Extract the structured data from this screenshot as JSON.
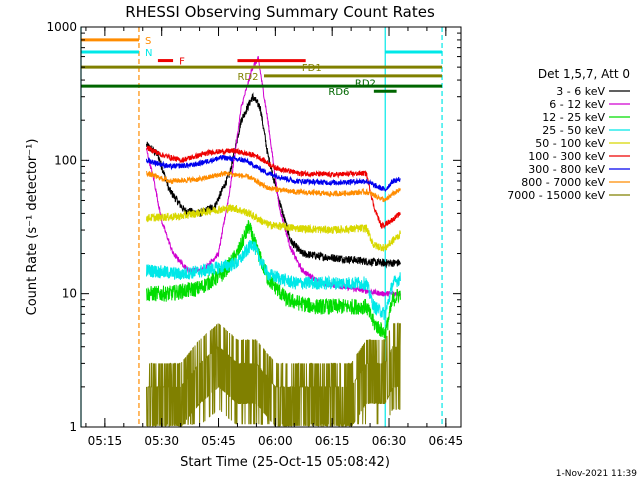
{
  "chart_data": {
    "type": "line",
    "title": "RHESSI Observing Summary Count Rates",
    "xlabel": "Start Time (25-Oct-15 05:08:42)",
    "ylabel": "Count Rate (s⁻¹ detector⁻¹)",
    "y_scale": "log",
    "ylim": [
      1,
      1000
    ],
    "xlim": [
      "05:08:42",
      "06:49:00"
    ],
    "y_tick_labels": [
      "1",
      "10",
      "100",
      "1000"
    ],
    "x_tick_labels": [
      "05:15",
      "05:30",
      "05:45",
      "06:00",
      "06:15",
      "06:30",
      "06:45"
    ],
    "x_tick_times": [
      "05:15",
      "05:30",
      "05:45",
      "06:00",
      "06:15",
      "06:30",
      "06:45"
    ],
    "legend_title": "Det 1,5,7, Att 0",
    "legend_position": "right",
    "footer_date": "1-Nov-2021 11:39",
    "series": [
      {
        "name": "3 - 6 keV",
        "color": "#000000",
        "noise": 0.03,
        "points": [
          [
            "05:26:00",
            130
          ],
          [
            "05:29:00",
            110
          ],
          [
            "05:32:00",
            60
          ],
          [
            "05:36:00",
            42
          ],
          [
            "05:40:00",
            40
          ],
          [
            "05:44:00",
            45
          ],
          [
            "05:48:00",
            80
          ],
          [
            "05:51:00",
            200
          ],
          [
            "05:54:00",
            300
          ],
          [
            "05:56:00",
            250
          ],
          [
            "05:58:00",
            110
          ],
          [
            "06:01:00",
            50
          ],
          [
            "06:04:00",
            25
          ],
          [
            "06:07:00",
            20
          ],
          [
            "06:12:00",
            19
          ],
          [
            "06:20:00",
            18
          ],
          [
            "06:28:00",
            17
          ],
          [
            "06:33:00",
            17
          ]
        ]
      },
      {
        "name": "6 - 12 keV",
        "color": "#d000d0",
        "noise": 0.02,
        "points": [
          [
            "05:26:00",
            120
          ],
          [
            "05:28:00",
            70
          ],
          [
            "05:30:00",
            35
          ],
          [
            "05:33:00",
            20
          ],
          [
            "05:37:00",
            15
          ],
          [
            "05:41:00",
            15
          ],
          [
            "05:45:00",
            20
          ],
          [
            "05:48:00",
            60
          ],
          [
            "05:51:00",
            250
          ],
          [
            "05:54:00",
            500
          ],
          [
            "05:55:30",
            580
          ],
          [
            "05:58:00",
            200
          ],
          [
            "06:01:00",
            45
          ],
          [
            "06:04:00",
            22
          ],
          [
            "06:07:00",
            15
          ],
          [
            "06:12:00",
            12
          ],
          [
            "06:20:00",
            11
          ],
          [
            "06:28:00",
            10
          ],
          [
            "06:33:00",
            10
          ]
        ]
      },
      {
        "name": "12 - 25 keV",
        "color": "#00dd00",
        "noise": 0.06,
        "points": [
          [
            "05:26:00",
            10
          ],
          [
            "05:32:00",
            10
          ],
          [
            "05:40:00",
            11
          ],
          [
            "05:46:00",
            14
          ],
          [
            "05:50:00",
            20
          ],
          [
            "05:53:00",
            32
          ],
          [
            "05:55:00",
            22
          ],
          [
            "05:58:00",
            13
          ],
          [
            "06:03:00",
            9
          ],
          [
            "06:10:00",
            8
          ],
          [
            "06:20:00",
            8
          ],
          [
            "06:24:00",
            8
          ],
          [
            "06:26:00",
            6
          ],
          [
            "06:29:00",
            5
          ],
          [
            "06:31:00",
            9
          ],
          [
            "06:33:00",
            10
          ]
        ]
      },
      {
        "name": "25 - 50 keV",
        "color": "#00e8e8",
        "noise": 0.05,
        "points": [
          [
            "05:26:00",
            15
          ],
          [
            "05:35:00",
            14
          ],
          [
            "05:42:00",
            15
          ],
          [
            "05:50:00",
            17
          ],
          [
            "05:54:00",
            24
          ],
          [
            "05:56:00",
            18
          ],
          [
            "05:58:00",
            14
          ],
          [
            "06:05:00",
            12
          ],
          [
            "06:15:00",
            12
          ],
          [
            "06:24:00",
            12
          ],
          [
            "06:26:00",
            8
          ],
          [
            "06:29:00",
            7
          ],
          [
            "06:31:00",
            12
          ],
          [
            "06:33:00",
            13
          ]
        ]
      },
      {
        "name": "50 - 100 keV",
        "color": "#d8d800",
        "noise": 0.03,
        "points": [
          [
            "05:26:00",
            37
          ],
          [
            "05:35:00",
            38
          ],
          [
            "05:43:00",
            42
          ],
          [
            "05:49:00",
            44
          ],
          [
            "05:53:00",
            40
          ],
          [
            "05:58:00",
            33
          ],
          [
            "06:05:00",
            31
          ],
          [
            "06:15:00",
            30
          ],
          [
            "06:24:00",
            31
          ],
          [
            "06:26:00",
            23
          ],
          [
            "06:29:00",
            22
          ],
          [
            "06:31:00",
            25
          ],
          [
            "06:33:00",
            28
          ]
        ]
      },
      {
        "name": "100 - 300 keV",
        "color": "#ee0000",
        "noise": 0.02,
        "points": [
          [
            "05:26:00",
            125
          ],
          [
            "05:30:00",
            110
          ],
          [
            "05:35:00",
            100
          ],
          [
            "05:43:00",
            115
          ],
          [
            "05:49:00",
            118
          ],
          [
            "05:55:00",
            108
          ],
          [
            "06:00:00",
            88
          ],
          [
            "06:06:00",
            80
          ],
          [
            "06:15:00",
            78
          ],
          [
            "06:24:00",
            80
          ],
          [
            "06:26:00",
            45
          ],
          [
            "06:28:00",
            32
          ],
          [
            "06:31:00",
            36
          ],
          [
            "06:33:00",
            40
          ]
        ]
      },
      {
        "name": "300 - 800 keV",
        "color": "#0000ee",
        "noise": 0.02,
        "points": [
          [
            "05:26:00",
            100
          ],
          [
            "05:32:00",
            90
          ],
          [
            "05:38:00",
            92
          ],
          [
            "05:46:00",
            105
          ],
          [
            "05:52:00",
            100
          ],
          [
            "05:58:00",
            80
          ],
          [
            "06:05:00",
            70
          ],
          [
            "06:15:00",
            68
          ],
          [
            "06:24:00",
            70
          ],
          [
            "06:26:00",
            65
          ],
          [
            "06:29:00",
            60
          ],
          [
            "06:31:00",
            70
          ],
          [
            "06:33:00",
            72
          ]
        ]
      },
      {
        "name": "800 - 7000 keV",
        "color": "#ff8c00",
        "noise": 0.02,
        "points": [
          [
            "05:26:00",
            80
          ],
          [
            "05:32:00",
            70
          ],
          [
            "05:40:00",
            72
          ],
          [
            "05:47:00",
            80
          ],
          [
            "05:53:00",
            75
          ],
          [
            "05:58:00",
            62
          ],
          [
            "06:05:00",
            58
          ],
          [
            "06:15:00",
            56
          ],
          [
            "06:24:00",
            58
          ],
          [
            "06:26:00",
            55
          ],
          [
            "06:29:00",
            50
          ],
          [
            "06:31:00",
            56
          ],
          [
            "06:33:00",
            60
          ]
        ]
      },
      {
        "name": "7000 - 15000 keV",
        "color": "#808000",
        "noise": 0,
        "points": [
          [
            "05:26:00",
            2
          ],
          [
            "05:30:00",
            2
          ],
          [
            "05:35:00",
            2
          ],
          [
            "05:40:00",
            3
          ],
          [
            "05:45:00",
            4
          ],
          [
            "05:50:00",
            3
          ],
          [
            "05:55:00",
            3
          ],
          [
            "06:00:00",
            2
          ],
          [
            "06:10:00",
            2
          ],
          [
            "06:20:00",
            2
          ],
          [
            "06:24:00",
            3
          ],
          [
            "06:29:00",
            3
          ],
          [
            "06:31:00",
            4
          ],
          [
            "06:33:00",
            4
          ]
        ]
      }
    ],
    "flag_bars": [
      {
        "label": "S",
        "color": "#ff8c00",
        "level": 800,
        "start": "05:08:42",
        "end": "05:24:00"
      },
      {
        "label": "N",
        "color": "#00e8e8",
        "level": 650,
        "start": "05:08:42",
        "end": "05:24:00"
      },
      {
        "label": "N",
        "color": "#00e8e8",
        "level": 650,
        "start": "06:29:00",
        "end": "06:44:00"
      },
      {
        "label": "F",
        "color": "#ee0000",
        "level": 560,
        "start": "05:29:00",
        "end": "05:33:00"
      },
      {
        "label": "F",
        "color": "#ee0000",
        "level": 560,
        "start": "05:50:00",
        "end": "06:08:00"
      },
      {
        "label": "FD1",
        "color": "#808000",
        "level": 500,
        "start": "05:08:42",
        "end": "06:44:00"
      },
      {
        "label": "RD2",
        "color": "#808000",
        "level": 430,
        "start": "05:57:00",
        "end": "06:44:00"
      },
      {
        "label": "RD6",
        "color": "#006600",
        "level": 360,
        "start": "05:08:42",
        "end": "06:44:00"
      },
      {
        "label": "RD6",
        "color": "#006600",
        "level": 330,
        "start": "06:26:00",
        "end": "06:32:00"
      }
    ],
    "flag_text_labels": [
      {
        "text": "FD1",
        "color": "#808000",
        "time": "06:07:00",
        "level": 500
      },
      {
        "text": "RD2",
        "color": "#808000",
        "time": "05:50:00",
        "level": 430
      },
      {
        "text": "RD2",
        "color": "#006600",
        "time": "06:21:00",
        "level": 385
      },
      {
        "text": "RD6",
        "color": "#006600",
        "time": "06:14:00",
        "level": 330
      }
    ],
    "vertical_markers": [
      {
        "time": "05:08:42",
        "color": "#00e8e8",
        "style": "solid"
      },
      {
        "time": "05:24:00",
        "color": "#ff8c00",
        "style": "dashed"
      },
      {
        "time": "06:29:00",
        "color": "#00e8e8",
        "style": "solid"
      },
      {
        "time": "06:44:00",
        "color": "#00e8e8",
        "style": "dashed"
      }
    ]
  }
}
